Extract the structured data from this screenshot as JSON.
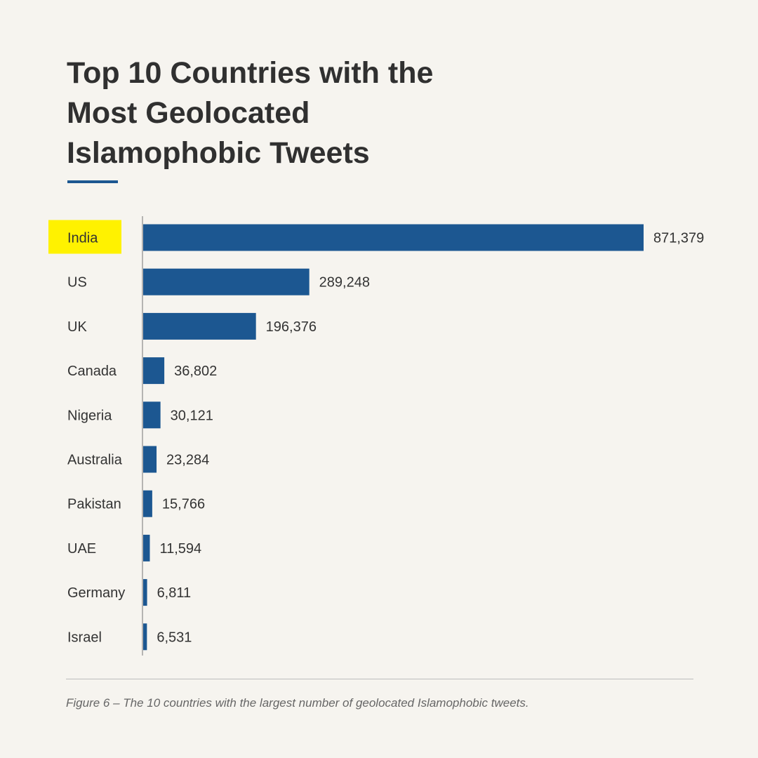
{
  "colors": {
    "bar": "#1c5791",
    "highlight": "#fff200",
    "axis": "#8a8a8a"
  },
  "chart_data": {
    "type": "bar",
    "orientation": "horizontal",
    "title": "Top 10 Countries with the Most Geolocated Islamophobic Tweets",
    "categories": [
      "India",
      "US",
      "UK",
      "Canada",
      "Nigeria",
      "Australia",
      "Pakistan",
      "UAE",
      "Germany",
      "Israel"
    ],
    "values": [
      871379,
      289248,
      196376,
      36802,
      30121,
      23284,
      15766,
      11594,
      6811,
      6531
    ],
    "value_labels": [
      "871,379",
      "289,248",
      "196,376",
      "36,802",
      "30,121",
      "23,284",
      "15,766",
      "11,594",
      "6,811",
      "6,531"
    ],
    "highlighted_category": "India",
    "xlim": [
      0,
      871379
    ],
    "grid": false,
    "legend": "none",
    "caption": "Figure 6 – The 10 countries with the largest number of geolocated Islamophobic tweets."
  }
}
